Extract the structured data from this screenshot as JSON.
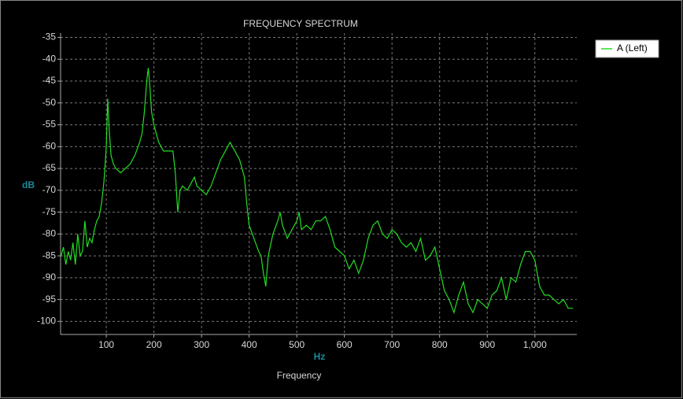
{
  "chart_data": {
    "type": "line",
    "title": "FREQUENCY SPECTRUM",
    "x_label": "Frequency",
    "x_unit": "Hz",
    "y_unit": "dB",
    "xlim": [
      4,
      1088
    ],
    "ylim": [
      -103,
      -34
    ],
    "xticks": [
      100,
      200,
      300,
      400,
      500,
      600,
      700,
      800,
      900,
      {
        "value": 1000,
        "label": "1,000"
      }
    ],
    "yticks": [
      -35,
      -40,
      -45,
      -50,
      -55,
      -60,
      -65,
      -70,
      -75,
      -80,
      -85,
      -90,
      -95,
      -100
    ],
    "grid": true,
    "legend": "upper right",
    "x": [
      5,
      10,
      15,
      20,
      25,
      30,
      35,
      40,
      45,
      50,
      55,
      60,
      65,
      70,
      75,
      80,
      85,
      90,
      95,
      100,
      103,
      106,
      110,
      115,
      120,
      130,
      140,
      150,
      160,
      170,
      175,
      180,
      185,
      188,
      192,
      195,
      200,
      205,
      210,
      220,
      230,
      240,
      245,
      250,
      255,
      260,
      270,
      280,
      285,
      290,
      300,
      310,
      320,
      330,
      340,
      350,
      360,
      370,
      380,
      390,
      395,
      400,
      410,
      420,
      425,
      430,
      435,
      440,
      450,
      460,
      465,
      470,
      480,
      490,
      500,
      505,
      510,
      520,
      530,
      540,
      550,
      560,
      570,
      580,
      590,
      600,
      610,
      620,
      630,
      640,
      650,
      660,
      670,
      680,
      690,
      700,
      710,
      720,
      730,
      740,
      750,
      760,
      770,
      780,
      790,
      800,
      810,
      820,
      830,
      840,
      850,
      860,
      870,
      880,
      890,
      900,
      910,
      920,
      930,
      940,
      950,
      960,
      970,
      980,
      990,
      1000,
      1010,
      1020,
      1030,
      1040,
      1050,
      1060,
      1070,
      1080
    ],
    "series": [
      {
        "name": "A (Left)",
        "color": "#22dd22",
        "values": [
          -85,
          -83,
          -87,
          -84,
          -86,
          -82,
          -87,
          -80,
          -85,
          -84,
          -77,
          -83,
          -81,
          -82,
          -79,
          -77,
          -76,
          -73,
          -68,
          -60,
          -49,
          -56,
          -62,
          -64,
          -65,
          -66,
          -65,
          -64,
          -62,
          -59,
          -57,
          -52,
          -45,
          -42,
          -47,
          -52,
          -55,
          -57,
          -59,
          -61,
          -61,
          -61,
          -66,
          -75,
          -70,
          -69,
          -70,
          -68,
          -67,
          -69,
          -70,
          -71,
          -69,
          -66,
          -63,
          -61,
          -59,
          -61,
          -63,
          -67,
          -73,
          -78,
          -81,
          -84,
          -85,
          -89,
          -92,
          -85,
          -80,
          -77,
          -75,
          -78,
          -81,
          -79,
          -77,
          -75,
          -79,
          -78,
          -79,
          -77,
          -77,
          -76,
          -79,
          -83,
          -84,
          -85,
          -88,
          -86,
          -89,
          -86,
          -81,
          -78,
          -77,
          -80,
          -81,
          -79,
          -80,
          -82,
          -83,
          -82,
          -84,
          -81,
          -86,
          -85,
          -83,
          -88,
          -93,
          -95,
          -98,
          -94,
          -91,
          -96,
          -98,
          -95,
          -96,
          -97,
          -94,
          -93,
          -90,
          -95,
          -90,
          -91,
          -87,
          -84,
          -84,
          -86,
          -92,
          -94,
          -94,
          -95,
          -96,
          -95,
          -97,
          -97
        ]
      }
    ]
  }
}
